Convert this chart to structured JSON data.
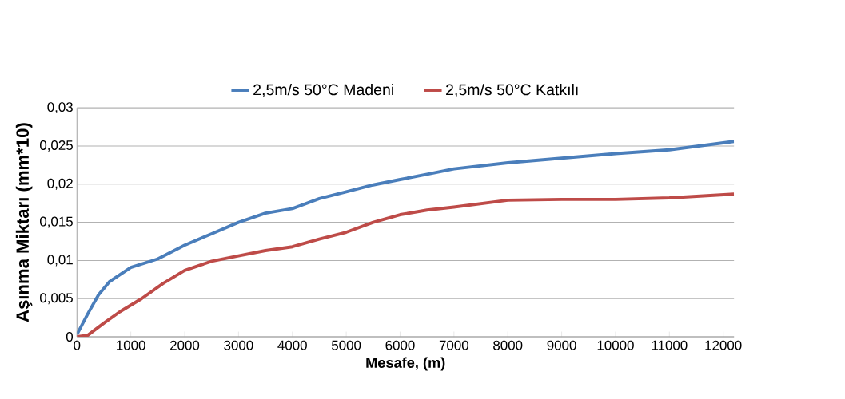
{
  "chart_data": {
    "type": "line",
    "xlabel": "Mesafe, (m)",
    "ylabel": "Aşınma Miktarı (mm*10)",
    "xlim": [
      0,
      12200
    ],
    "xticks": [
      0,
      1000,
      2000,
      3000,
      4000,
      5000,
      6000,
      7000,
      8000,
      9000,
      10000,
      11000,
      12000
    ],
    "ylim": [
      0,
      0.03
    ],
    "yticks": [
      {
        "value": 0,
        "label": "0"
      },
      {
        "value": 0.005,
        "label": "0,005"
      },
      {
        "value": 0.01,
        "label": "0,01"
      },
      {
        "value": 0.015,
        "label": "0,015"
      },
      {
        "value": 0.02,
        "label": "0,02"
      },
      {
        "value": 0.025,
        "label": "0,025"
      },
      {
        "value": 0.03,
        "label": "0,03"
      }
    ],
    "grid": "y",
    "legend": "top",
    "marker": "none",
    "series": [
      {
        "name": "2,5m/s 50°C Madeni",
        "color": "#4a7ebb",
        "x": [
          0,
          200,
          400,
          600,
          1000,
          1500,
          2000,
          2500,
          3000,
          3500,
          4000,
          4500,
          5000,
          5500,
          6000,
          6500,
          7000,
          8000,
          9000,
          10000,
          11000,
          12200
        ],
        "values": [
          0.0003,
          0.003,
          0.0055,
          0.0072,
          0.0091,
          0.0102,
          0.012,
          0.0135,
          0.015,
          0.0162,
          0.0168,
          0.0181,
          0.019,
          0.0199,
          0.0206,
          0.0213,
          0.022,
          0.0228,
          0.0234,
          0.024,
          0.0245,
          0.0256
        ]
      },
      {
        "name": "2,5m/s 50°C Katkılı",
        "color": "#be4b48",
        "x": [
          0,
          200,
          500,
          800,
          1200,
          1600,
          2000,
          2500,
          3000,
          3500,
          4000,
          4500,
          5000,
          5500,
          6000,
          6500,
          7000,
          8000,
          9000,
          10000,
          11000,
          12200
        ],
        "values": [
          0,
          0.0002,
          0.0018,
          0.0033,
          0.005,
          0.007,
          0.0087,
          0.0099,
          0.0106,
          0.0113,
          0.0118,
          0.0128,
          0.0137,
          0.015,
          0.016,
          0.0166,
          0.017,
          0.0179,
          0.018,
          0.018,
          0.0182,
          0.0187
        ]
      }
    ]
  }
}
